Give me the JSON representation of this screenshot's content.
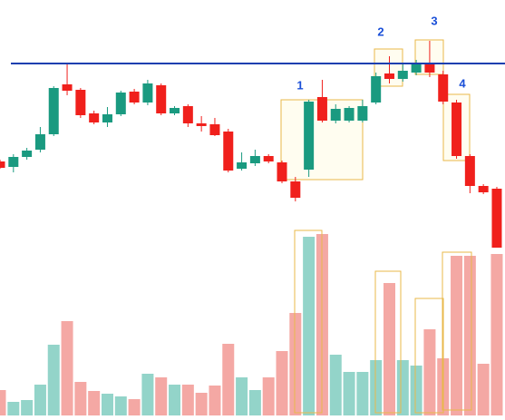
{
  "chart_data": {
    "type": "candlestick",
    "open": [
      285,
      279,
      290,
      298,
      315,
      370,
      364,
      338,
      328,
      337,
      362,
      350,
      369,
      338,
      346,
      327,
      326,
      318,
      277,
      283,
      291,
      284,
      263,
      276,
      356,
      330,
      330,
      330,
      350,
      382,
      376,
      383,
      394,
      381,
      350,
      291,
      258,
      255
    ],
    "high": [
      287,
      293,
      300,
      323,
      368,
      393,
      366,
      341,
      345,
      363,
      365,
      375,
      371,
      346,
      348,
      335,
      333,
      321,
      295,
      298,
      293,
      286,
      268,
      353,
      375,
      348,
      346,
      353,
      383,
      401,
      393,
      397,
      418,
      385,
      353,
      293,
      260,
      257
    ],
    "low": [
      277,
      273,
      287,
      295,
      313,
      358,
      333,
      326,
      323,
      335,
      348,
      347,
      336,
      336,
      323,
      318,
      313,
      273,
      275,
      280,
      283,
      261,
      241,
      268,
      328,
      327,
      328,
      328,
      348,
      371,
      373,
      380,
      378,
      348,
      288,
      250,
      249,
      190
    ],
    "close": [
      278,
      290,
      297,
      315,
      366,
      363,
      336,
      328,
      337,
      361,
      350,
      371,
      338,
      344,
      327,
      324,
      314,
      275,
      284,
      291,
      285,
      263,
      245,
      351,
      330,
      343,
      344,
      346,
      379,
      376,
      385,
      394,
      383,
      351,
      291,
      258,
      251,
      190
    ],
    "volume": [
      28,
      15,
      17,
      34,
      78,
      104,
      37,
      27,
      24,
      21,
      18,
      46,
      42,
      34,
      34,
      25,
      33,
      79,
      42,
      28,
      42,
      71,
      113,
      197,
      200,
      67,
      48,
      48,
      61,
      146,
      61,
      55,
      95,
      63,
      176,
      176,
      57,
      178
    ],
    "ylim": [
      0,
      463
    ],
    "volume_ylim": [
      0,
      458
    ],
    "up_color": "#1a9a80",
    "down_color": "#f0201c",
    "up_volume_color": "#93d4c9",
    "down_volume_color": "#f4a8a4",
    "resistance_level": 393,
    "resistance_color": "#1a3fb0",
    "annotations": [
      "1",
      "2",
      "3",
      "4"
    ]
  }
}
